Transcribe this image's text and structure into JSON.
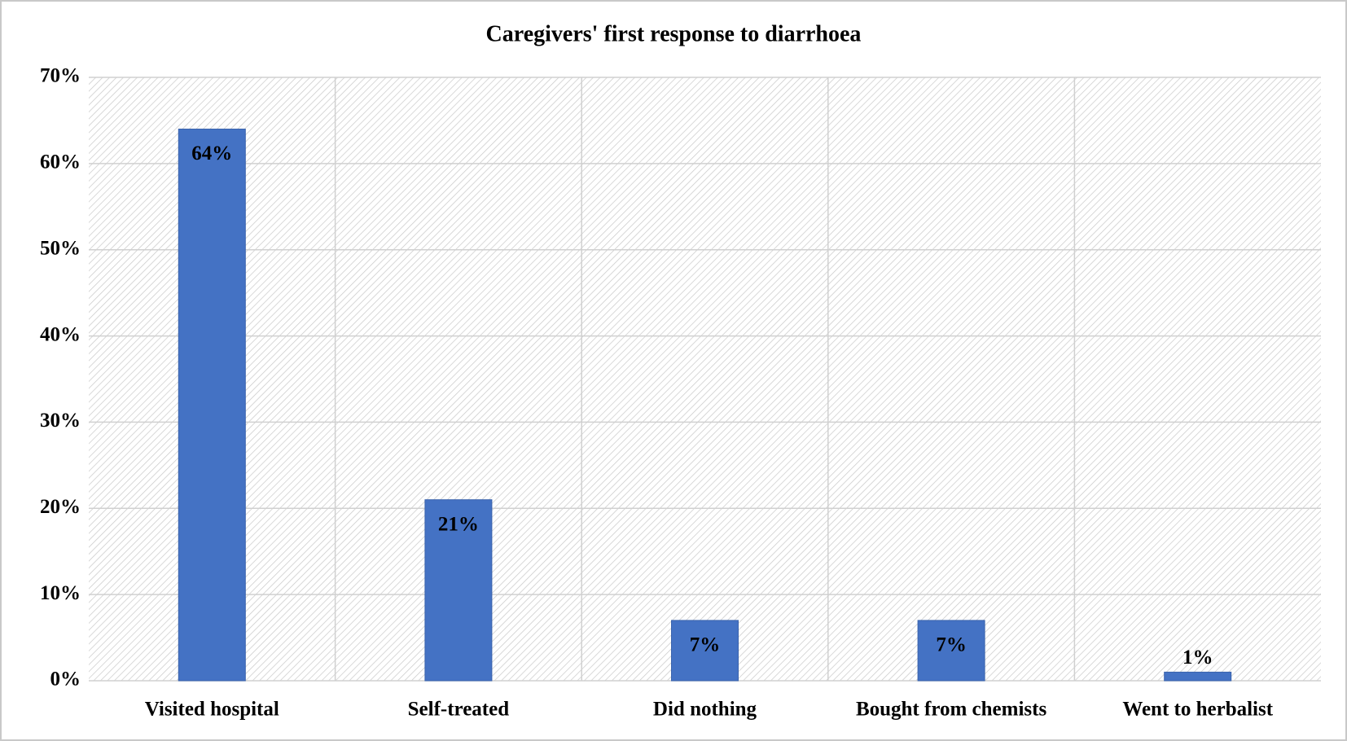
{
  "chart_data": {
    "type": "bar",
    "title": "Caregivers' first response to diarrhoea",
    "categories": [
      "Visited hospital",
      "Self-treated",
      "Did nothing",
      "Bought from chemists",
      "Went to herbalist"
    ],
    "values": [
      64,
      21,
      7,
      7,
      1
    ],
    "value_labels": [
      "64%",
      "21%",
      "7%",
      "7%",
      "1%"
    ],
    "color": "#4472c4",
    "ylim": [
      0,
      70
    ],
    "yticks": [
      {
        "value": 0,
        "label": "0%"
      },
      {
        "value": 10,
        "label": "10%"
      },
      {
        "value": 20,
        "label": "20%"
      },
      {
        "value": 30,
        "label": "30%"
      },
      {
        "value": 40,
        "label": "40%"
      },
      {
        "value": 50,
        "label": "50%"
      },
      {
        "value": 60,
        "label": "60%"
      },
      {
        "value": 70,
        "label": "70%"
      }
    ],
    "grid": true
  }
}
